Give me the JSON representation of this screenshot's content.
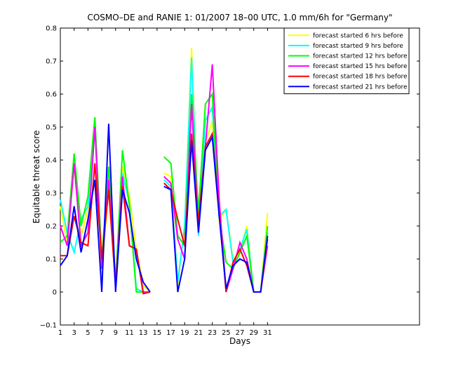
{
  "chart_data": {
    "type": "line",
    "title": "COSMO–DE and RANIE 1: 01/2007 18–00 UTC, 1.0 mm/6h for \"Germany\"",
    "xlabel": "Days",
    "ylabel": "Equitable threat score",
    "xlim": [
      1,
      53
    ],
    "ylim": [
      -0.1,
      0.8
    ],
    "xticks": [
      1,
      3,
      5,
      7,
      9,
      11,
      13,
      15,
      17,
      19,
      21,
      23,
      25,
      27,
      29,
      31
    ],
    "yticks": [
      -0.1,
      0,
      0.1,
      0.2,
      0.3,
      0.4,
      0.5,
      0.6,
      0.7,
      0.8
    ],
    "ytick_labels": [
      "−0.1",
      "0",
      "0.1",
      "0.2",
      "0.3",
      "0.4",
      "0.5",
      "0.6",
      "0.7",
      "0.8"
    ],
    "grid": false,
    "legend_position": "top-right",
    "x": [
      1,
      2,
      3,
      4,
      5,
      6,
      7,
      8,
      9,
      10,
      11,
      12,
      13,
      14,
      15,
      16,
      17,
      18,
      19,
      20,
      21,
      22,
      23,
      24,
      25,
      26,
      27,
      28,
      29,
      30,
      31
    ],
    "series": [
      {
        "name": "forecast started 6 hrs before",
        "color": "#ffff00",
        "values": [
          0.26,
          0.15,
          0.38,
          0.17,
          0.25,
          0.52,
          0.05,
          0.32,
          0.03,
          0.38,
          0.29,
          0.13,
          0.02,
          0.0,
          null,
          0.36,
          0.35,
          0.02,
          0.2,
          0.74,
          0.18,
          0.45,
          0.52,
          0.22,
          0.25,
          0.1,
          0.12,
          0.2,
          0.0,
          0.0,
          0.24
        ]
      },
      {
        "name": "forecast started 9 hrs before",
        "color": "#00ffff",
        "values": [
          0.28,
          0.18,
          0.12,
          0.22,
          0.26,
          0.51,
          0.08,
          0.34,
          0.04,
          0.36,
          0.27,
          0.01,
          0.0,
          0.0,
          null,
          0.34,
          0.32,
          0.03,
          0.2,
          0.71,
          0.17,
          0.52,
          0.56,
          0.23,
          0.25,
          0.09,
          0.13,
          0.19,
          0.0,
          0.0,
          0.18
        ]
      },
      {
        "name": "forecast started 12 hrs before",
        "color": "#00ff00",
        "values": [
          0.15,
          0.17,
          0.42,
          0.2,
          0.29,
          0.53,
          0.1,
          0.38,
          0.02,
          0.43,
          0.26,
          0.0,
          0.0,
          0.0,
          null,
          0.41,
          0.39,
          0.17,
          0.14,
          0.6,
          0.24,
          0.57,
          0.6,
          0.23,
          0.09,
          0.07,
          0.12,
          0.17,
          0.0,
          0.0,
          0.2
        ]
      },
      {
        "name": "forecast started 15 hrs before",
        "color": "#ff00ff",
        "values": [
          0.2,
          0.14,
          0.39,
          0.14,
          0.18,
          0.5,
          0.07,
          0.34,
          0.01,
          0.35,
          0.14,
          0.13,
          0.0,
          0.0,
          null,
          0.35,
          0.33,
          0.16,
          0.1,
          0.57,
          0.19,
          0.44,
          0.69,
          0.28,
          0.0,
          0.07,
          0.15,
          0.1,
          0.0,
          0.0,
          0.14
        ]
      },
      {
        "name": "forecast started 18 hrs before",
        "color": "#ff0000",
        "values": [
          0.11,
          0.11,
          0.23,
          0.15,
          0.14,
          0.39,
          0.1,
          0.31,
          0.02,
          0.32,
          0.14,
          0.13,
          -0.005,
          0.0,
          null,
          0.33,
          0.31,
          0.22,
          0.14,
          0.48,
          0.21,
          0.44,
          0.48,
          0.24,
          0.0,
          0.09,
          0.13,
          0.08,
          0.0,
          0.0,
          0.16
        ]
      },
      {
        "name": "forecast started 21 hrs before",
        "color": "#0000ff",
        "values": [
          0.08,
          0.11,
          0.26,
          0.12,
          0.22,
          0.34,
          0.0,
          0.51,
          0.0,
          0.31,
          0.24,
          0.1,
          0.03,
          0.0,
          null,
          0.32,
          0.31,
          0.0,
          0.1,
          0.46,
          0.18,
          0.43,
          0.47,
          0.23,
          0.01,
          0.08,
          0.1,
          0.09,
          0.0,
          0.0,
          0.17
        ]
      }
    ]
  }
}
